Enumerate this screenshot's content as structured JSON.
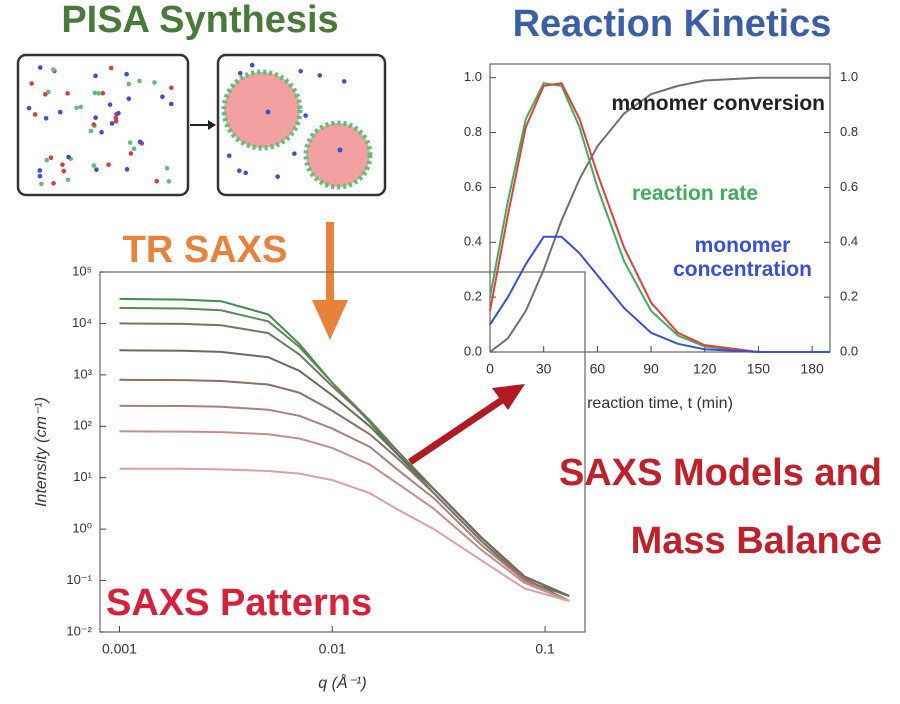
{
  "panels": {
    "synthesis_title": "PISA Synthesis",
    "tr_saxs": "TR SAXS",
    "models": [
      "SAXS Models and",
      "Mass Balance"
    ]
  },
  "chart_data": [
    {
      "type": "line",
      "annotation": "SAXS Patterns",
      "xlabel": "q (Å⁻¹)",
      "ylabel": "Intensity (cm⁻¹)",
      "xscale": "log",
      "yscale": "log",
      "x": [
        0.001,
        0.002,
        0.003,
        0.005,
        0.007,
        0.01,
        0.015,
        0.02,
        0.03,
        0.05,
        0.08,
        0.13
      ],
      "xlim": [
        0.00081,
        0.154
      ],
      "xticks": [
        0.001,
        0.01,
        0.1
      ],
      "ylim": [
        0.01,
        100000
      ],
      "yticks": [
        {
          "value": 0.01,
          "label": "10⁻²"
        },
        {
          "value": 0.1,
          "label": "10⁻¹"
        },
        {
          "value": 1,
          "label": "10⁰"
        },
        {
          "value": 10,
          "label": "10¹"
        },
        {
          "value": 100,
          "label": "10²"
        },
        {
          "value": 1000,
          "label": "10³"
        },
        {
          "value": 10000,
          "label": "10⁴"
        },
        {
          "value": 100000,
          "label": "10⁵"
        }
      ],
      "series": [
        {
          "color": "#3f8f4a",
          "values": [
            30000,
            29000,
            27000,
            15000,
            4000,
            700,
            120,
            30,
            5,
            0.6,
            0.1,
            0.05
          ]
        },
        {
          "color": "#5a8a55",
          "values": [
            20000,
            19500,
            18000,
            11000,
            3500,
            700,
            130,
            35,
            6,
            0.7,
            0.12,
            0.05
          ]
        },
        {
          "color": "#6c7a5c",
          "values": [
            10000,
            9800,
            9200,
            6500,
            2500,
            600,
            130,
            35,
            6,
            0.7,
            0.12,
            0.05
          ]
        },
        {
          "color": "#6f6a5e",
          "values": [
            3000,
            2950,
            2800,
            2200,
            1200,
            400,
            100,
            30,
            6,
            0.7,
            0.12,
            0.05
          ]
        },
        {
          "color": "#8a7065",
          "values": [
            800,
            790,
            760,
            650,
            450,
            200,
            70,
            25,
            5,
            0.6,
            0.11,
            0.04
          ]
        },
        {
          "color": "#a8827a",
          "values": [
            250,
            248,
            240,
            210,
            160,
            90,
            40,
            15,
            4,
            0.5,
            0.1,
            0.04
          ]
        },
        {
          "color": "#c48f8a",
          "values": [
            80,
            79,
            77,
            70,
            58,
            38,
            18,
            8,
            2.5,
            0.4,
            0.09,
            0.04
          ]
        },
        {
          "color": "#dca0a0",
          "values": [
            15,
            15,
            14.5,
            13.5,
            12,
            9,
            5,
            2.5,
            1,
            0.25,
            0.07,
            0.04
          ]
        }
      ]
    },
    {
      "type": "line",
      "title": "Reaction Kinetics",
      "xlabel": "reaction time, t (min)",
      "x": [
        0,
        10,
        20,
        30,
        40,
        50,
        60,
        75,
        90,
        105,
        120,
        150,
        180,
        190
      ],
      "xlim": [
        0,
        190
      ],
      "xticks": [
        0,
        30,
        60,
        90,
        120,
        150,
        180
      ],
      "ylim": [
        0,
        1.05
      ],
      "yticks": [
        {
          "value": 0,
          "label": "0.0"
        },
        {
          "value": 0.2,
          "label": "0.2"
        },
        {
          "value": 0.4,
          "label": "0.4"
        },
        {
          "value": 0.6,
          "label": "0.6"
        },
        {
          "value": 0.8,
          "label": "0.8"
        },
        {
          "value": 1,
          "label": "1.0"
        }
      ],
      "y2lim": [
        0,
        1.05
      ],
      "y2ticks": [
        {
          "value": 0,
          "label": "0.0"
        },
        {
          "value": 0.2,
          "label": "0.2"
        },
        {
          "value": 0.4,
          "label": "0.4"
        },
        {
          "value": 0.6,
          "label": "0.6"
        },
        {
          "value": 0.8,
          "label": "0.8"
        },
        {
          "value": 1,
          "label": "1.0"
        }
      ],
      "series": [
        {
          "name": "monomer conversion",
          "color": "#707070",
          "axis": "y2",
          "values": [
            0,
            0.05,
            0.15,
            0.3,
            0.48,
            0.63,
            0.75,
            0.87,
            0.94,
            0.97,
            0.99,
            1,
            1,
            1
          ]
        },
        {
          "name": "reaction rate",
          "color": "#3fae5a",
          "values": [
            0.2,
            0.55,
            0.85,
            0.98,
            0.97,
            0.82,
            0.6,
            0.33,
            0.15,
            0.06,
            0.02,
            0,
            0,
            0
          ]
        },
        {
          "color": "#e0413a",
          "values": [
            0.15,
            0.5,
            0.82,
            0.97,
            0.98,
            0.85,
            0.65,
            0.38,
            0.18,
            0.07,
            0.025,
            0,
            0,
            0
          ]
        },
        {
          "name": "monomer concentration",
          "color": "#3a4fd8",
          "values": [
            0.1,
            0.2,
            0.32,
            0.42,
            0.42,
            0.36,
            0.28,
            0.16,
            0.07,
            0.03,
            0.01,
            0,
            0,
            0
          ]
        }
      ]
    }
  ]
}
